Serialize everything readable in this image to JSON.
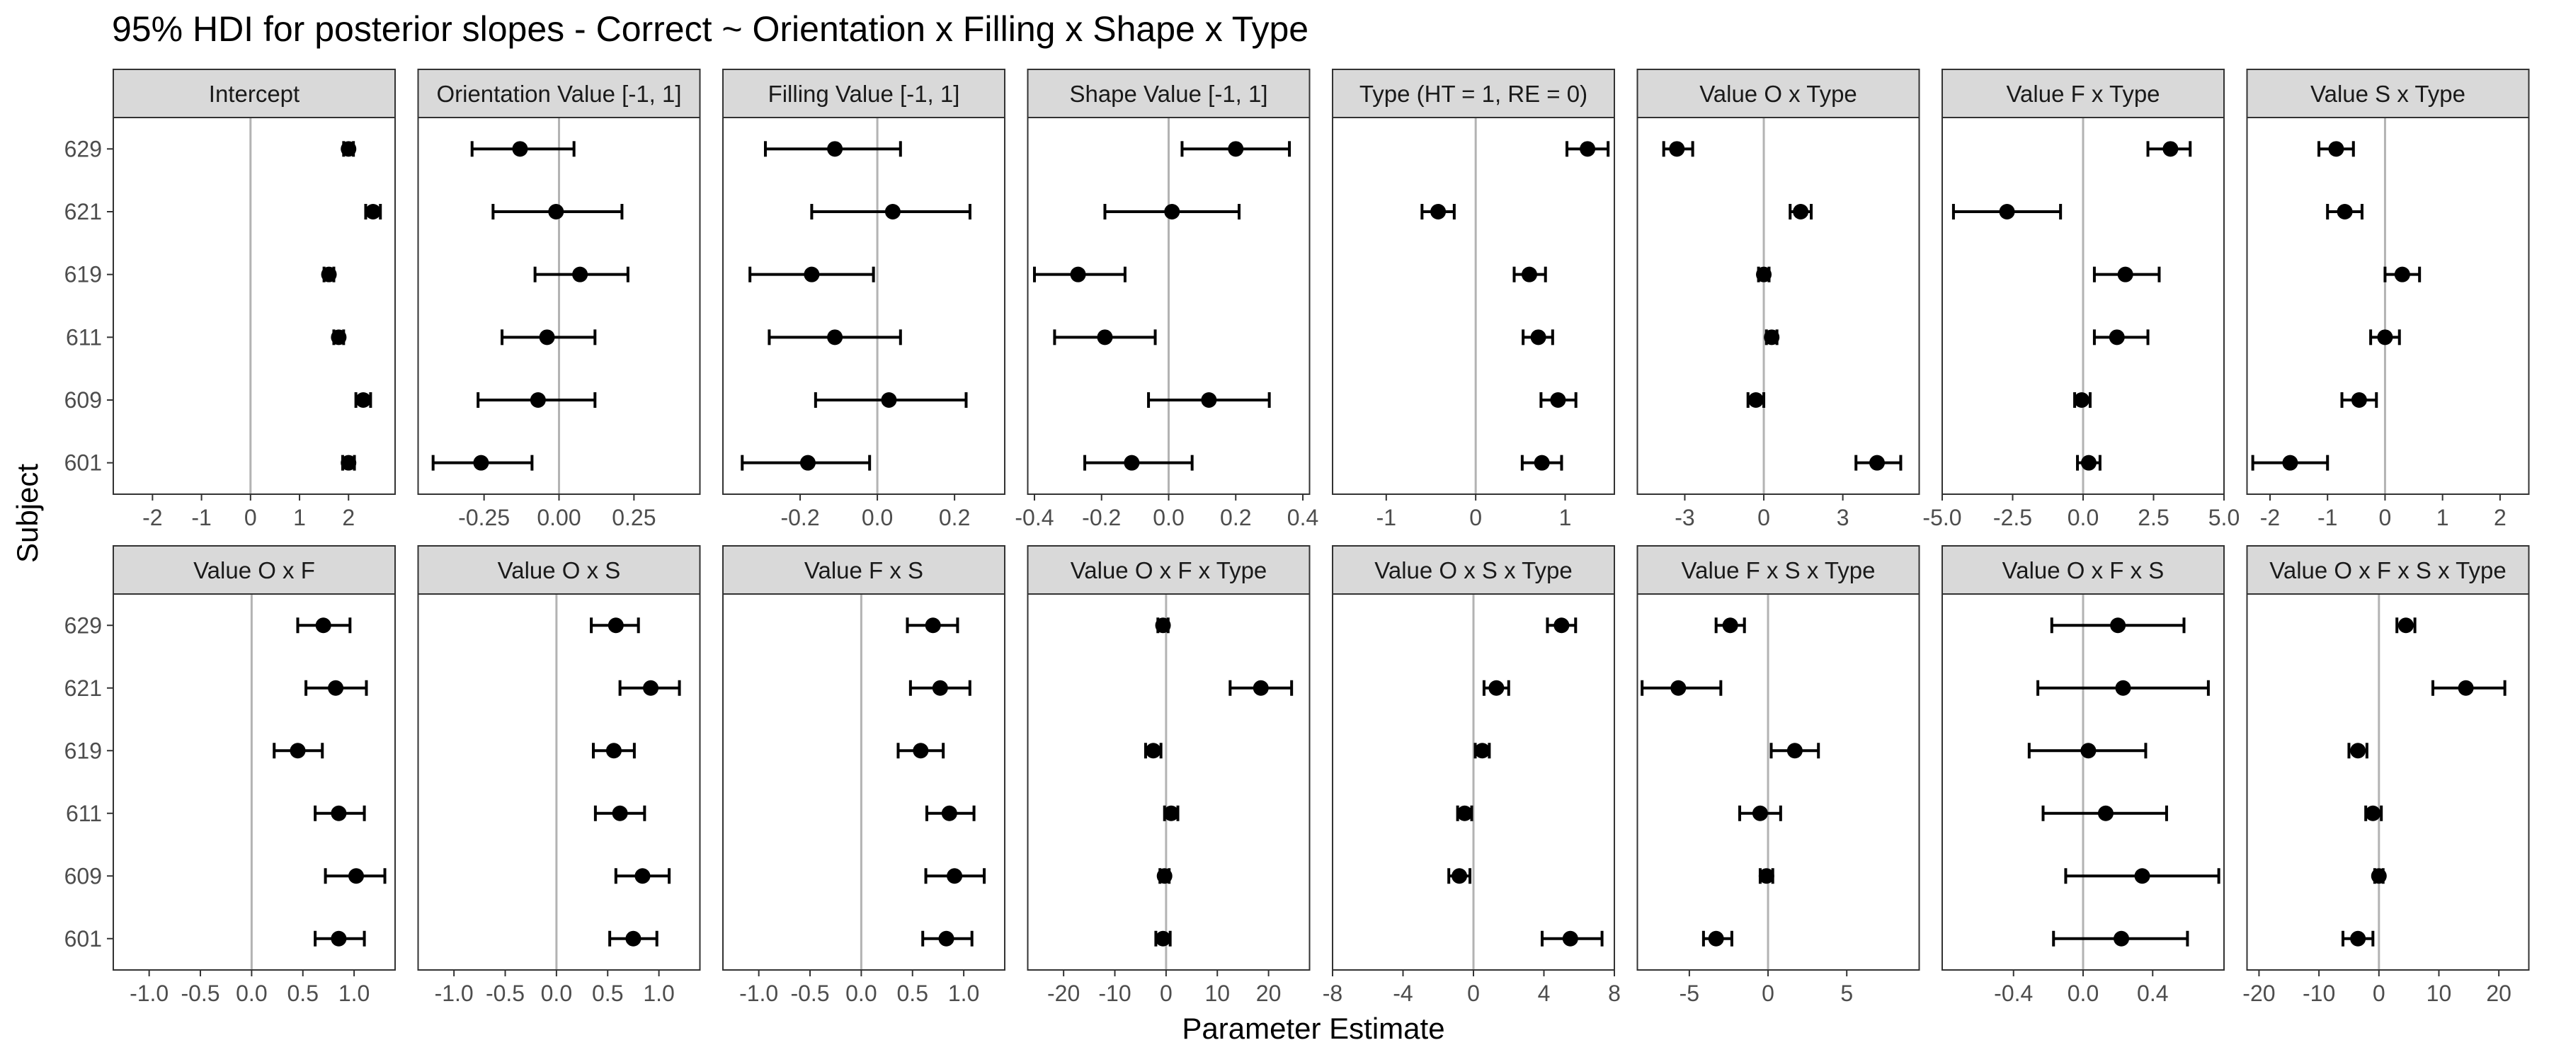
{
  "chart_data": {
    "type": "scatter",
    "title": "95% HDI for posterior slopes - Correct ~ Orientation x Filling x Shape x Type",
    "xlabel": "Parameter Estimate",
    "ylabel": "Subject",
    "subjects": [
      "629",
      "621",
      "619",
      "611",
      "609",
      "601"
    ],
    "reference_line": 0,
    "grid": false,
    "colors": {
      "point": "#000000",
      "strip_fill": "#d9d9d9",
      "reference_line": "#b3b3b3",
      "panel_border": "#333333"
    },
    "panels": [
      {
        "name": "Intercept",
        "xlim": [
          -2.8,
          2.95
        ],
        "ticks": [
          -2,
          -1,
          0,
          1,
          2
        ],
        "tick_labels": [
          "-2",
          "-1",
          "0",
          "1",
          "2"
        ],
        "estimates": [
          2.0,
          2.5,
          1.6,
          1.8,
          2.3,
          2.0
        ],
        "lower": [
          1.9,
          2.35,
          1.5,
          1.7,
          2.15,
          1.88
        ],
        "upper": [
          2.1,
          2.65,
          1.7,
          1.9,
          2.45,
          2.12
        ]
      },
      {
        "name": "Orientation Value [-1, 1]",
        "xlim": [
          -0.47,
          0.47
        ],
        "ticks": [
          -0.25,
          0,
          0.25
        ],
        "tick_labels": [
          "-0.25",
          "0.00",
          "0.25"
        ],
        "estimates": [
          -0.13,
          -0.01,
          0.07,
          -0.04,
          -0.07,
          -0.26
        ],
        "lower": [
          -0.29,
          -0.22,
          -0.08,
          -0.19,
          -0.27,
          -0.42
        ],
        "upper": [
          0.05,
          0.21,
          0.23,
          0.12,
          0.12,
          -0.09
        ]
      },
      {
        "name": "Filling Value [-1, 1]",
        "xlim": [
          -0.4,
          0.33
        ],
        "ticks": [
          -0.2,
          0,
          0.2
        ],
        "tick_labels": [
          "-0.2",
          "0.0",
          "0.2"
        ],
        "estimates": [
          -0.11,
          0.04,
          -0.17,
          -0.11,
          0.03,
          -0.18
        ],
        "lower": [
          -0.29,
          -0.17,
          -0.33,
          -0.28,
          -0.16,
          -0.35
        ],
        "upper": [
          0.06,
          0.24,
          -0.01,
          0.06,
          0.23,
          -0.02
        ]
      },
      {
        "name": "Shape Value [-1, 1]",
        "xlim": [
          -0.42,
          0.42
        ],
        "ticks": [
          -0.4,
          -0.2,
          0,
          0.2,
          0.4
        ],
        "tick_labels": [
          "-0.4",
          "-0.2",
          "0.0",
          "0.2",
          "0.4"
        ],
        "estimates": [
          0.2,
          0.01,
          -0.27,
          -0.19,
          0.12,
          -0.11
        ],
        "lower": [
          0.04,
          -0.19,
          -0.4,
          -0.34,
          -0.06,
          -0.25
        ],
        "upper": [
          0.36,
          0.21,
          -0.13,
          -0.04,
          0.3,
          0.07
        ]
      },
      {
        "name": "Type (HT = 1, RE = 0)",
        "xlim": [
          -1.6,
          1.55
        ],
        "ticks": [
          -1,
          0,
          1
        ],
        "tick_labels": [
          "-1",
          "0",
          "1"
        ],
        "estimates": [
          1.25,
          -0.42,
          0.6,
          0.7,
          0.92,
          0.74
        ],
        "lower": [
          1.02,
          -0.6,
          0.43,
          0.53,
          0.73,
          0.52
        ],
        "upper": [
          1.48,
          -0.24,
          0.78,
          0.86,
          1.12,
          0.96
        ]
      },
      {
        "name": "Value O x Type",
        "xlim": [
          -4.8,
          5.9
        ],
        "ticks": [
          -3,
          0,
          3
        ],
        "tick_labels": [
          "-3",
          "0",
          "3"
        ],
        "estimates": [
          -3.3,
          1.4,
          0.0,
          0.3,
          -0.3,
          4.3
        ],
        "lower": [
          -3.8,
          1.0,
          -0.2,
          0.1,
          -0.6,
          3.5
        ],
        "upper": [
          -2.7,
          1.8,
          0.2,
          0.5,
          0.0,
          5.2
        ]
      },
      {
        "name": "Value F x Type",
        "xlim": [
          -5.0,
          5.0
        ],
        "ticks": [
          -5,
          -2.5,
          0,
          2.5,
          5
        ],
        "tick_labels": [
          "-5.0",
          "-2.5",
          "0.0",
          "2.5",
          "5.0"
        ],
        "estimates": [
          3.1,
          -2.7,
          1.5,
          1.2,
          -0.05,
          0.2
        ],
        "lower": [
          2.3,
          -4.6,
          0.4,
          0.4,
          -0.3,
          -0.2
        ],
        "upper": [
          3.8,
          -0.8,
          2.7,
          2.3,
          0.25,
          0.6
        ]
      },
      {
        "name": "Value S x Type",
        "xlim": [
          -2.4,
          2.5
        ],
        "ticks": [
          -2,
          -1,
          0,
          1,
          2
        ],
        "tick_labels": [
          "-2",
          "-1",
          "0",
          "1",
          "2"
        ],
        "estimates": [
          -0.85,
          -0.7,
          0.3,
          0.0,
          -0.45,
          -1.65
        ],
        "lower": [
          -1.15,
          -1.0,
          0.0,
          -0.25,
          -0.75,
          -2.3
        ],
        "upper": [
          -0.55,
          -0.4,
          0.6,
          0.25,
          -0.15,
          -1.0
        ]
      },
      {
        "name": "Value O x F",
        "xlim": [
          -1.35,
          1.4
        ],
        "ticks": [
          -1,
          -0.5,
          0,
          0.5,
          1
        ],
        "tick_labels": [
          "-1.0",
          "-0.5",
          "0.0",
          "0.5",
          "1.0"
        ],
        "estimates": [
          0.7,
          0.82,
          0.45,
          0.85,
          1.02,
          0.85
        ],
        "lower": [
          0.45,
          0.53,
          0.22,
          0.62,
          0.72,
          0.62
        ],
        "upper": [
          0.96,
          1.12,
          0.69,
          1.1,
          1.3,
          1.1
        ]
      },
      {
        "name": "Value O x S",
        "xlim": [
          -1.35,
          1.4
        ],
        "ticks": [
          -1,
          -0.5,
          0,
          0.5,
          1
        ],
        "tick_labels": [
          "-1.0",
          "-0.5",
          "0.0",
          "0.5",
          "1.0"
        ],
        "estimates": [
          0.58,
          0.92,
          0.56,
          0.62,
          0.84,
          0.75
        ],
        "lower": [
          0.34,
          0.62,
          0.36,
          0.38,
          0.58,
          0.52
        ],
        "upper": [
          0.8,
          1.2,
          0.76,
          0.86,
          1.1,
          0.98
        ]
      },
      {
        "name": "Value F x S",
        "xlim": [
          -1.35,
          1.4
        ],
        "ticks": [
          -1,
          -0.5,
          0,
          0.5,
          1
        ],
        "tick_labels": [
          "-1.0",
          "-0.5",
          "0.0",
          "0.5",
          "1.0"
        ],
        "estimates": [
          0.7,
          0.77,
          0.58,
          0.86,
          0.91,
          0.83
        ],
        "lower": [
          0.45,
          0.48,
          0.36,
          0.64,
          0.63,
          0.6
        ],
        "upper": [
          0.94,
          1.06,
          0.8,
          1.1,
          1.2,
          1.08
        ]
      },
      {
        "name": "Value O x F x Type",
        "xlim": [
          -27,
          28
        ],
        "ticks": [
          -20,
          -10,
          0,
          10,
          20
        ],
        "tick_labels": [
          "-20",
          "-10",
          "0",
          "10",
          "20"
        ],
        "estimates": [
          -0.6,
          18.5,
          -2.5,
          1.0,
          -0.3,
          -0.6
        ],
        "lower": [
          -1.6,
          12.5,
          -4.0,
          -0.3,
          -1.2,
          -2.0
        ],
        "upper": [
          0.4,
          24.5,
          -1.0,
          2.3,
          0.6,
          0.8
        ]
      },
      {
        "name": "Value O x S x Type",
        "xlim": [
          -8,
          8
        ],
        "ticks": [
          -8,
          -4,
          0,
          4,
          8
        ],
        "tick_labels": [
          "-8",
          "-4",
          "0",
          "4",
          "8"
        ],
        "estimates": [
          5.0,
          1.3,
          0.5,
          -0.5,
          -0.8,
          5.5
        ],
        "lower": [
          4.2,
          0.6,
          0.1,
          -0.9,
          -1.4,
          3.9
        ],
        "upper": [
          5.8,
          2.0,
          0.9,
          -0.1,
          -0.2,
          7.3
        ]
      },
      {
        "name": "Value F x S x Type",
        "xlim": [
          -8.3,
          9.6
        ],
        "ticks": [
          -5,
          0,
          5
        ],
        "tick_labels": [
          "-5",
          "0",
          "5"
        ],
        "estimates": [
          -2.4,
          -5.7,
          1.7,
          -0.5,
          -0.1,
          -3.3
        ],
        "lower": [
          -3.3,
          -8.0,
          0.2,
          -1.8,
          -0.5,
          -4.1
        ],
        "upper": [
          -1.5,
          -3.0,
          3.2,
          0.8,
          0.3,
          -2.3
        ]
      },
      {
        "name": "Value O x F x S",
        "xlim": [
          -0.81,
          0.81
        ],
        "ticks": [
          -0.4,
          0,
          0.4
        ],
        "tick_labels": [
          "-0.4",
          "0.0",
          "0.4"
        ],
        "estimates": [
          0.2,
          0.23,
          0.03,
          0.13,
          0.34,
          0.22
        ],
        "lower": [
          -0.18,
          -0.26,
          -0.31,
          -0.23,
          -0.1,
          -0.17
        ],
        "upper": [
          0.58,
          0.72,
          0.36,
          0.48,
          0.78,
          0.6
        ]
      },
      {
        "name": "Value O x F x S x Type",
        "xlim": [
          -22,
          25
        ],
        "ticks": [
          -20,
          -10,
          0,
          10,
          20
        ],
        "tick_labels": [
          "-20",
          "-10",
          "0",
          "10",
          "20"
        ],
        "estimates": [
          4.5,
          14.5,
          -3.5,
          -1.0,
          0.0,
          -3.5
        ],
        "lower": [
          3.0,
          9.0,
          -5.0,
          -2.2,
          -0.7,
          -6.0
        ],
        "upper": [
          6.0,
          21.0,
          -2.0,
          0.4,
          0.7,
          -1.0
        ]
      }
    ]
  }
}
